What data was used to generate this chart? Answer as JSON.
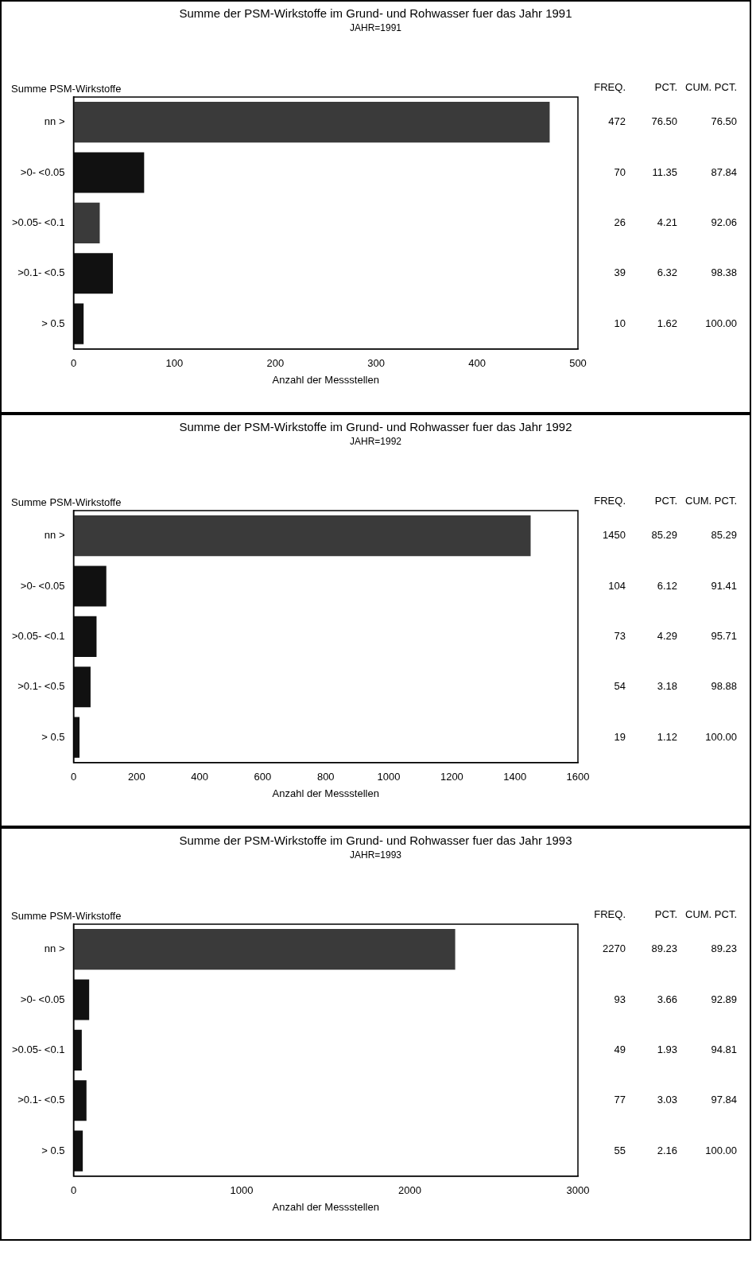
{
  "chart_data": [
    {
      "type": "bar",
      "orientation": "horizontal",
      "title": "Summe der PSM-Wirkstoffe im Grund- und Rohwasser fuer das Jahr 1991",
      "subtitle": "JAHR=1991",
      "ylabel": "Summe PSM-Wirkstoffe",
      "xlabel": "Anzahl der Messstellen",
      "categories": [
        "nn >",
        ">0- <0.05",
        ">0.05- <0.1",
        ">0.1- <0.5",
        "> 0.5"
      ],
      "values": [
        472,
        70,
        26,
        39,
        10
      ],
      "colors": [
        "#3a3a3a",
        "#111111",
        "#3a3a3a",
        "#111111",
        "#111111"
      ],
      "xlim": [
        0,
        500
      ],
      "xticks": [
        0,
        100,
        200,
        300,
        400,
        500
      ],
      "data_labels": true,
      "annotations": [
        "FREQ.",
        "PCT.",
        "CUM. PCT.",
        "76.50",
        "76.50",
        "11.35",
        "87.84",
        "4.21",
        "92.06",
        "6.32",
        "98.38",
        "1.62",
        "100.00"
      ]
    },
    {
      "type": "bar",
      "orientation": "horizontal",
      "title": "Summe der PSM-Wirkstoffe im Grund- und Rohwasser fuer das Jahr 1992",
      "subtitle": "JAHR=1992",
      "ylabel": "Summe PSM-Wirkstoffe",
      "xlabel": "Anzahl der Messstellen",
      "categories": [
        "nn >",
        ">0- <0.05",
        ">0.05- <0.1",
        ">0.1- <0.5",
        "> 0.5"
      ],
      "values": [
        1450,
        104,
        73,
        54,
        19
      ],
      "colors": [
        "#3a3a3a",
        "#111111",
        "#111111",
        "#111111",
        "#111111"
      ],
      "xlim": [
        0,
        1600
      ],
      "xticks": [
        0,
        200,
        400,
        600,
        800,
        1000,
        1200,
        1400,
        1600
      ],
      "data_labels": true,
      "annotations": [
        "FREQ.",
        "PCT.",
        "CUM. PCT.",
        "85.29",
        "85.29",
        "6.12",
        "91.41",
        "4.29",
        "95.71",
        "3.18",
        "98.88",
        "1.12",
        "100.00"
      ]
    },
    {
      "type": "bar",
      "orientation": "horizontal",
      "title": "Summe der PSM-Wirkstoffe im Grund- und Rohwasser fuer das Jahr 1993",
      "subtitle": "JAHR=1993",
      "ylabel": "Summe PSM-Wirkstoffe",
      "xlabel": "Anzahl der Messstellen",
      "categories": [
        "nn >",
        ">0- <0.05",
        ">0.05- <0.1",
        ">0.1- <0.5",
        "> 0.5"
      ],
      "values": [
        2270,
        93,
        49,
        77,
        55
      ],
      "colors": [
        "#3a3a3a",
        "#111111",
        "#111111",
        "#111111",
        "#111111"
      ],
      "xlim": [
        0,
        3000
      ],
      "xticks": [
        0,
        1000,
        2000,
        3000
      ],
      "data_labels": true,
      "annotations": [
        "FREQ.",
        "PCT.",
        "CUM. PCT.",
        "89.23",
        "89.23",
        "3.66",
        "92.89",
        "1.93",
        "94.81",
        "3.03",
        "97.84",
        "2.16",
        "100.00"
      ]
    }
  ]
}
